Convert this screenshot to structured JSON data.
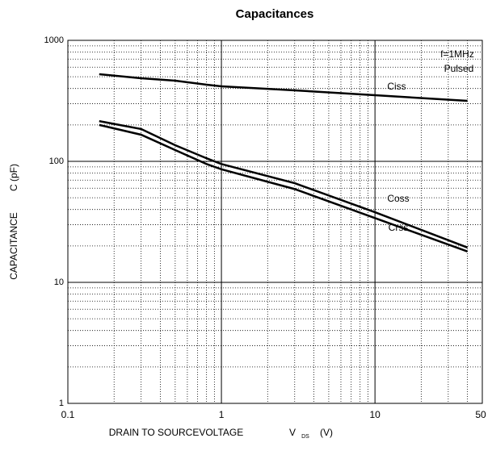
{
  "chart_data": {
    "type": "line",
    "title": "Capacitances",
    "y_label": "CAPACITANCE",
    "y_label_symbol": "C (pF)",
    "x_label": "DRAIN TO SOURCEVOLTAGE",
    "x_label_symbol": "V",
    "x_label_subscript": "DS",
    "x_label_unit": "(V)",
    "annotations": [
      "f=1MHz",
      "Pulsed"
    ],
    "log_x": true,
    "log_y": true,
    "grid": true,
    "xlim": [
      0.1,
      50
    ],
    "xticks": [
      0.1,
      1,
      10,
      50
    ],
    "xminor": [
      0.2,
      0.3,
      0.4,
      0.5,
      0.6,
      0.7,
      0.8,
      0.9,
      2,
      3,
      4,
      5,
      6,
      7,
      8,
      9,
      20,
      30,
      40
    ],
    "ylim": [
      1,
      1000
    ],
    "yticks": [
      1,
      10,
      100,
      1000
    ],
    "yminor": [
      2,
      3,
      4,
      5,
      6,
      7,
      8,
      9,
      20,
      30,
      40,
      50,
      60,
      70,
      80,
      90,
      200,
      300,
      400,
      500,
      600,
      700,
      800,
      900
    ],
    "x": [
      0.16,
      0.3,
      0.5,
      0.8,
      1,
      3,
      10,
      40
    ],
    "series": [
      {
        "name": "Ciss",
        "color": "#000000",
        "values": [
          525,
          486,
          464,
          430,
          417,
          386,
          352,
          316
        ]
      },
      {
        "name": "Coss",
        "color": "#000000",
        "values": [
          215,
          185,
          136,
          106,
          95,
          66,
          38,
          19.4
        ]
      },
      {
        "name": "Crss",
        "color": "#000000",
        "values": [
          200,
          166,
          124,
          95,
          86,
          59,
          34,
          18
        ]
      }
    ]
  }
}
